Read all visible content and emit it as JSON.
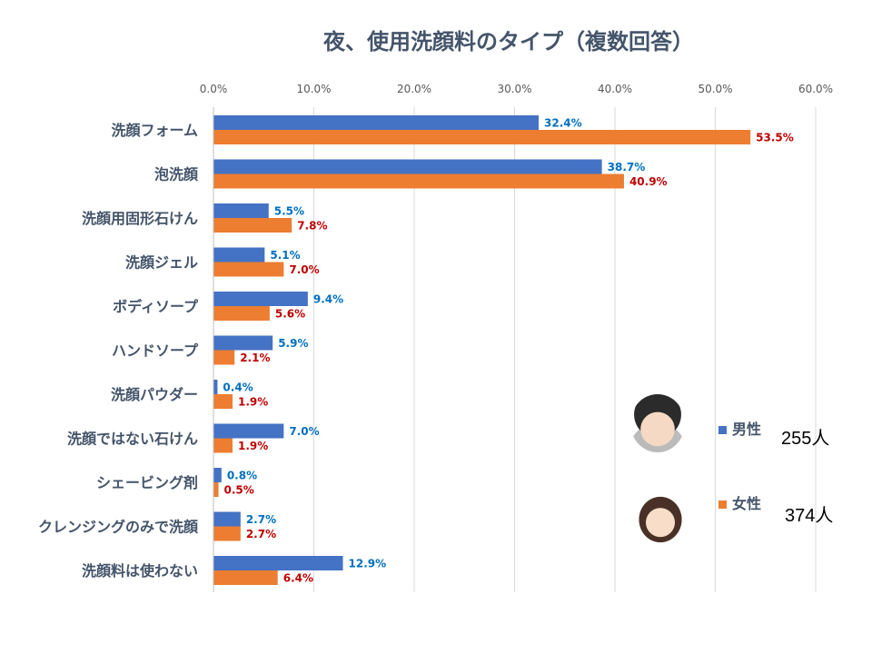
{
  "chart_data": {
    "type": "bar",
    "orientation": "horizontal",
    "title": "夜、使用洗顔料のタイプ（複数回答）",
    "categories": [
      "洗顔フォーム",
      "泡洗顔",
      "洗顔用固形石けん",
      "洗顔ジェル",
      "ボディソープ",
      "ハンドソープ",
      "洗顔パウダー",
      "洗顔ではない石けん",
      "シェービング剤",
      "クレンジングのみで洗顔",
      "洗顔料は使わない"
    ],
    "series": [
      {
        "name": "男性",
        "count_label": "255人",
        "color": "#4472C4",
        "label_color": "#0070C0",
        "values": [
          32.4,
          38.7,
          5.5,
          5.1,
          9.4,
          5.9,
          0.4,
          7.0,
          0.8,
          2.7,
          12.9
        ]
      },
      {
        "name": "女性",
        "count_label": "374人",
        "color": "#ED7D31",
        "label_color": "#C00000",
        "values": [
          53.5,
          40.9,
          7.8,
          7.0,
          5.6,
          2.1,
          1.9,
          1.9,
          0.5,
          2.7,
          6.4
        ]
      }
    ],
    "xlim": [
      0,
      60
    ],
    "xticks": [
      "0.0%",
      "10.0%",
      "20.0%",
      "30.0%",
      "40.0%",
      "50.0%",
      "60.0%"
    ],
    "grid": true,
    "legend_position": "right"
  }
}
